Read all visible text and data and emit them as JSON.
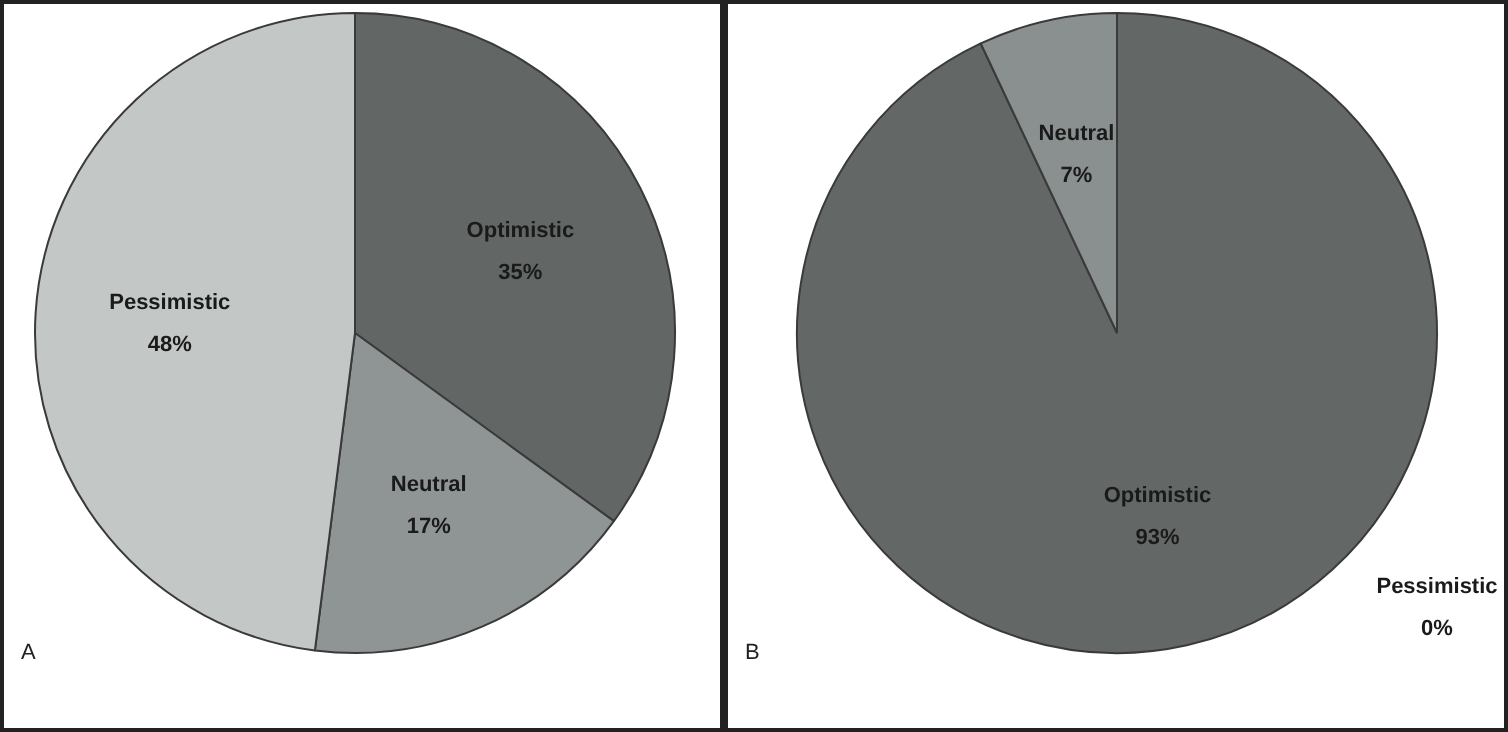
{
  "chart_data": [
    {
      "type": "pie",
      "categories": [
        "Optimistic",
        "Neutral",
        "Pessimistic"
      ],
      "values": [
        35,
        17,
        48
      ],
      "value_labels": [
        "35%",
        "17%",
        "48%"
      ],
      "colors": [
        "#626766",
        "#8f9594",
        "#c3c8c7"
      ],
      "annotations": [
        "A"
      ]
    },
    {
      "type": "pie",
      "categories": [
        "Optimistic",
        "Neutral",
        "Pessimistic"
      ],
      "values": [
        93,
        7,
        0
      ],
      "value_labels": [
        "93%",
        "7%",
        "0%"
      ],
      "colors": [
        "#636866",
        "#8a908f",
        "#c3c8c7"
      ],
      "annotations": [
        "B"
      ]
    }
  ]
}
